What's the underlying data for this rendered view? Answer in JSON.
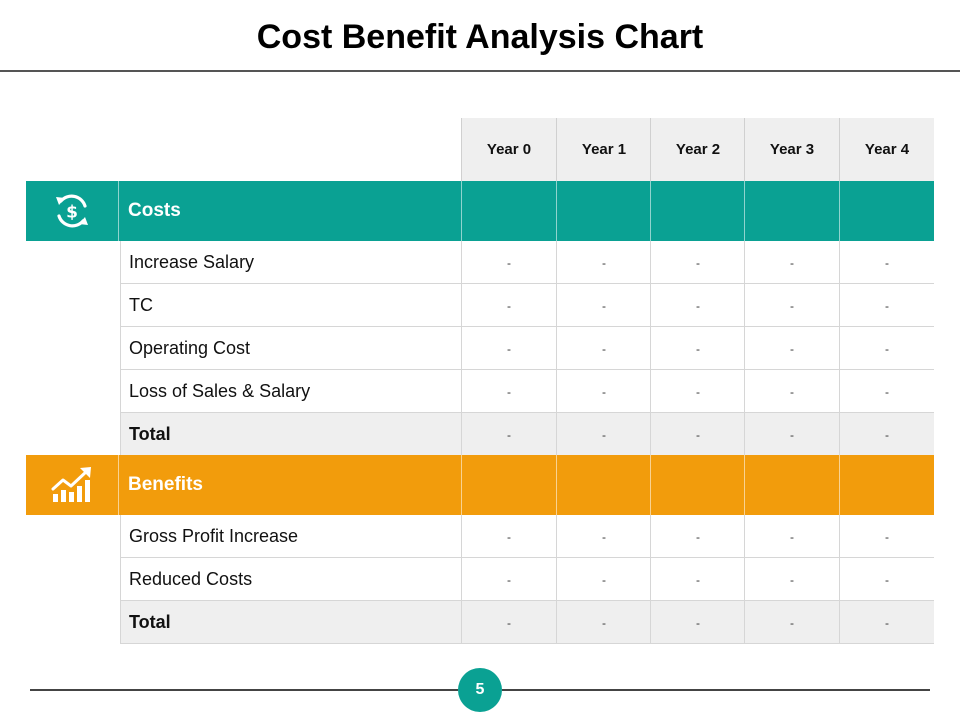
{
  "title": "Cost Benefit Analysis Chart",
  "colors": {
    "costs": "#0aa193",
    "benefits": "#f29c0c",
    "header": "#efefef"
  },
  "years": [
    "Year 0",
    "Year 1",
    "Year 2",
    "Year 3",
    "Year 4"
  ],
  "costs": {
    "label": "Costs",
    "icon": "dollar-cycle-icon",
    "rows": [
      {
        "label": "Increase Salary",
        "values": [
          "-",
          "-",
          "-",
          "-",
          "-"
        ]
      },
      {
        "label": "TC",
        "values": [
          "-",
          "-",
          "-",
          "-",
          "-"
        ]
      },
      {
        "label": "Operating Cost",
        "values": [
          "-",
          "-",
          "-",
          "-",
          "-"
        ]
      },
      {
        "label": "Loss of Sales & Salary",
        "values": [
          "-",
          "-",
          "-",
          "-",
          "-"
        ]
      },
      {
        "label": "Total",
        "values": [
          "-",
          "-",
          "-",
          "-",
          "-"
        ],
        "total": true
      }
    ]
  },
  "benefits": {
    "label": "Benefits",
    "icon": "growth-chart-icon",
    "rows": [
      {
        "label": "Gross Profit Increase",
        "values": [
          "-",
          "-",
          "-",
          "-",
          "-"
        ]
      },
      {
        "label": "Reduced Costs",
        "values": [
          "-",
          "-",
          "-",
          "-",
          "-"
        ]
      },
      {
        "label": "Total",
        "values": [
          "-",
          "-",
          "-",
          "-",
          "-"
        ],
        "total": true
      }
    ]
  },
  "page_number": "5"
}
